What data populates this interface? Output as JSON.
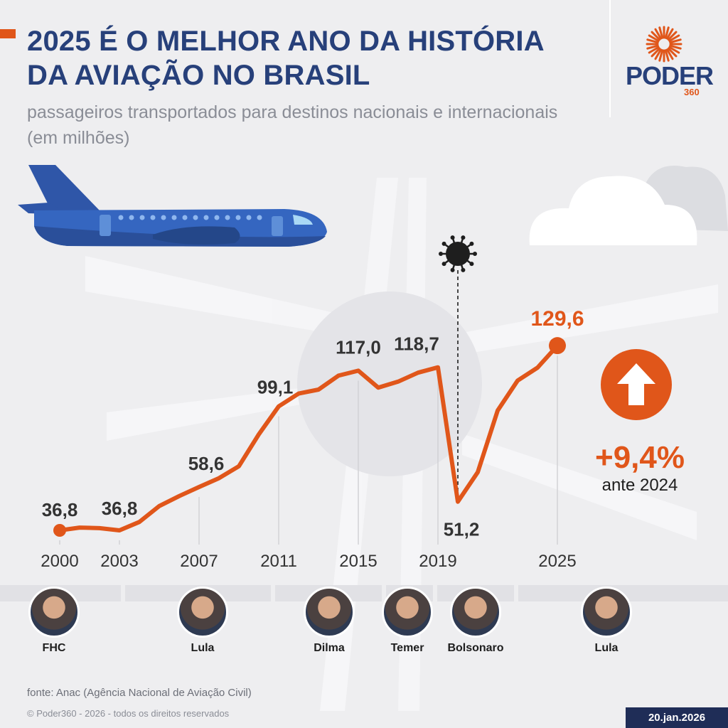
{
  "header": {
    "title": "2025 É O MELHOR ANO DA HISTÓRIA DA AVIAÇÃO NO BRASIL",
    "subtitle": "passageiros transportados para destinos nacionais e internacionais (em milhões)"
  },
  "brand": {
    "name": "PODER",
    "sub": "360"
  },
  "colors": {
    "accent": "#e0561a",
    "title": "#27407a",
    "line": "#e0561a",
    "gridline": "#d2d2d6"
  },
  "icons": {
    "virus": "virus-icon",
    "up_arrow": "up-arrow-icon",
    "airplane": "airplane-icon",
    "cloud": "cloud-icon"
  },
  "chart_data": {
    "type": "line",
    "x": [
      2000,
      2001,
      2002,
      2003,
      2004,
      2005,
      2006,
      2007,
      2008,
      2009,
      2010,
      2011,
      2012,
      2013,
      2014,
      2015,
      2016,
      2017,
      2018,
      2019,
      2020,
      2021,
      2022,
      2023,
      2024,
      2025
    ],
    "values": [
      36.8,
      38.2,
      37.9,
      36.8,
      41.0,
      49.0,
      54.0,
      58.6,
      63.0,
      69.0,
      85.0,
      99.1,
      105.5,
      107.5,
      114.5,
      117.0,
      108.5,
      111.5,
      116.0,
      118.7,
      51.2,
      66.0,
      97.0,
      112.0,
      118.5,
      129.6
    ],
    "x_ticks": [
      "2000",
      "2003",
      "2007",
      "2011",
      "2015",
      "2019",
      "2025"
    ],
    "ylim": [
      30,
      135
    ],
    "data_labels": [
      {
        "x": 2000,
        "text": "36,8"
      },
      {
        "x": 2003,
        "text": "36,8"
      },
      {
        "x": 2007,
        "text": "58,6"
      },
      {
        "x": 2011,
        "text": "99,1"
      },
      {
        "x": 2015,
        "text": "117,0"
      },
      {
        "x": 2019,
        "text": "118,7"
      },
      {
        "x": 2020,
        "text": "51,2"
      },
      {
        "x": 2025,
        "text": "129,6"
      }
    ],
    "xlabel": "",
    "ylabel": ""
  },
  "change": {
    "value": "+9,4%",
    "note": "ante 2024"
  },
  "presidents": [
    {
      "name": "FHC"
    },
    {
      "name": "Lula"
    },
    {
      "name": "Dilma"
    },
    {
      "name": "Temer"
    },
    {
      "name": "Bolsonaro"
    },
    {
      "name": "Lula"
    }
  ],
  "footer": {
    "source": "fonte: Anac (Agência Nacional de Aviação Civil)",
    "copyright": "© Poder360 - 2026 - todos os direitos reservados",
    "date": "20.jan.2026"
  }
}
